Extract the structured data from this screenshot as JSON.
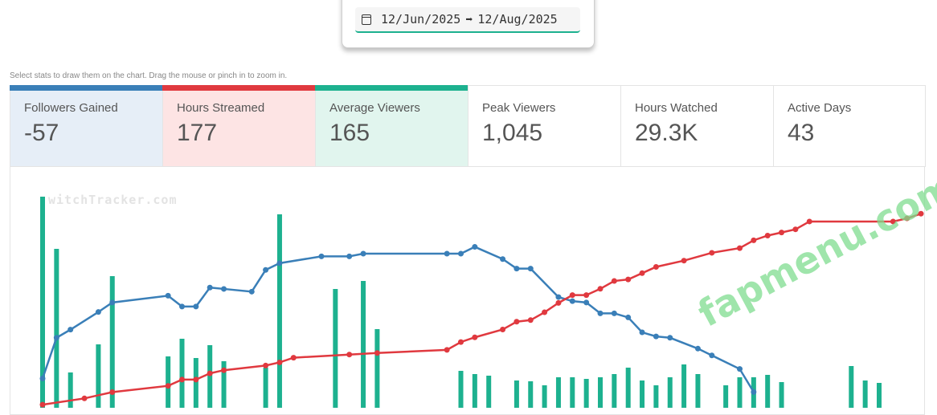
{
  "date_range": {
    "start": "12/Jun/2025",
    "separator": "➡",
    "end": "12/Aug/2025",
    "icon": "calendar-icon"
  },
  "hint": "Select stats to draw them on the chart. Drag the mouse or pinch in to zoom in.",
  "stats": [
    {
      "label": "Followers Gained",
      "value": "-57",
      "selected": true,
      "color": "#3a7fb8",
      "bg": "#e6eef7"
    },
    {
      "label": "Hours Streamed",
      "value": "177",
      "selected": true,
      "color": "#e0393f",
      "bg": "#fde4e4"
    },
    {
      "label": "Average Viewers",
      "value": "165",
      "selected": true,
      "color": "#1db18f",
      "bg": "#e1f5ee"
    },
    {
      "label": "Peak Viewers",
      "value": "1,045",
      "selected": false
    },
    {
      "label": "Hours Watched",
      "value": "29.3K",
      "selected": false
    },
    {
      "label": "Active Days",
      "value": "43",
      "selected": false
    }
  ],
  "watermarks": {
    "site": "witchTracker.com",
    "overlay": "fapmenu.com"
  },
  "chart_data": {
    "type": "bar+line",
    "x_range": [
      1,
      62
    ],
    "grid": false,
    "series": [
      {
        "type": "bar",
        "color": "#1db18f",
        "points": [
          [
            1,
            265
          ],
          [
            2,
            200
          ],
          [
            3,
            46
          ],
          [
            5,
            81
          ],
          [
            6,
            166
          ],
          [
            10,
            66
          ],
          [
            11,
            88
          ],
          [
            12,
            64
          ],
          [
            13,
            80
          ],
          [
            14,
            60
          ],
          [
            17,
            52
          ],
          [
            18,
            243
          ],
          [
            22,
            150
          ],
          [
            24,
            160
          ],
          [
            25,
            100
          ],
          [
            31,
            48
          ],
          [
            32,
            44
          ],
          [
            33,
            42
          ],
          [
            35,
            36
          ],
          [
            36,
            35
          ],
          [
            37,
            30
          ],
          [
            38,
            40
          ],
          [
            39,
            40
          ],
          [
            40,
            38
          ],
          [
            41,
            40
          ],
          [
            42,
            44
          ],
          [
            43,
            52
          ],
          [
            44,
            36
          ],
          [
            45,
            30
          ],
          [
            46,
            40
          ],
          [
            47,
            56
          ],
          [
            48,
            44
          ],
          [
            50,
            30
          ],
          [
            51,
            40
          ],
          [
            52,
            40
          ],
          [
            53,
            43
          ],
          [
            54,
            34
          ],
          [
            59,
            54
          ],
          [
            60,
            36
          ],
          [
            61,
            33
          ]
        ]
      },
      {
        "type": "line",
        "color": "#3a7fb8",
        "points": [
          [
            1,
            -110
          ],
          [
            2,
            -80
          ],
          [
            3,
            -74
          ],
          [
            5,
            -61
          ],
          [
            6,
            -54
          ],
          [
            10,
            -49
          ],
          [
            11,
            -57
          ],
          [
            12,
            -57
          ],
          [
            13,
            -43
          ],
          [
            14,
            -44
          ],
          [
            16,
            -46
          ],
          [
            17,
            -30
          ],
          [
            18,
            -25
          ],
          [
            21,
            -20
          ],
          [
            23,
            -20
          ],
          [
            24,
            -18
          ],
          [
            30,
            -18
          ],
          [
            31,
            -18
          ],
          [
            32,
            -13
          ],
          [
            34,
            -22
          ],
          [
            35,
            -29
          ],
          [
            36,
            -29
          ],
          [
            38,
            -50
          ],
          [
            39,
            -53
          ],
          [
            40,
            -54
          ],
          [
            41,
            -62
          ],
          [
            42,
            -62
          ],
          [
            43,
            -65
          ],
          [
            44,
            -76
          ],
          [
            45,
            -79
          ],
          [
            46,
            -80
          ],
          [
            48,
            -88
          ],
          [
            49,
            -93
          ],
          [
            51,
            -103
          ],
          [
            52,
            -120
          ]
        ]
      },
      {
        "type": "line",
        "color": "#e0393f",
        "points": [
          [
            1,
            2
          ],
          [
            4,
            6
          ],
          [
            6,
            10
          ],
          [
            10,
            14
          ],
          [
            11,
            18
          ],
          [
            12,
            18
          ],
          [
            13,
            22
          ],
          [
            14,
            24
          ],
          [
            17,
            27
          ],
          [
            18,
            29
          ],
          [
            19,
            32
          ],
          [
            23,
            34
          ],
          [
            25,
            35
          ],
          [
            30,
            37
          ],
          [
            31,
            42
          ],
          [
            32,
            45
          ],
          [
            34,
            50
          ],
          [
            35,
            55
          ],
          [
            36,
            56
          ],
          [
            37,
            61
          ],
          [
            38,
            67
          ],
          [
            39,
            72
          ],
          [
            40,
            72
          ],
          [
            41,
            76
          ],
          [
            42,
            81
          ],
          [
            43,
            82
          ],
          [
            44,
            86
          ],
          [
            45,
            90
          ],
          [
            47,
            94
          ],
          [
            49,
            99
          ],
          [
            51,
            102
          ],
          [
            52,
            107
          ],
          [
            53,
            110
          ],
          [
            54,
            112
          ],
          [
            55,
            114
          ],
          [
            56,
            119
          ],
          [
            62,
            119
          ],
          [
            63,
            121
          ],
          [
            64,
            124
          ]
        ]
      }
    ]
  }
}
